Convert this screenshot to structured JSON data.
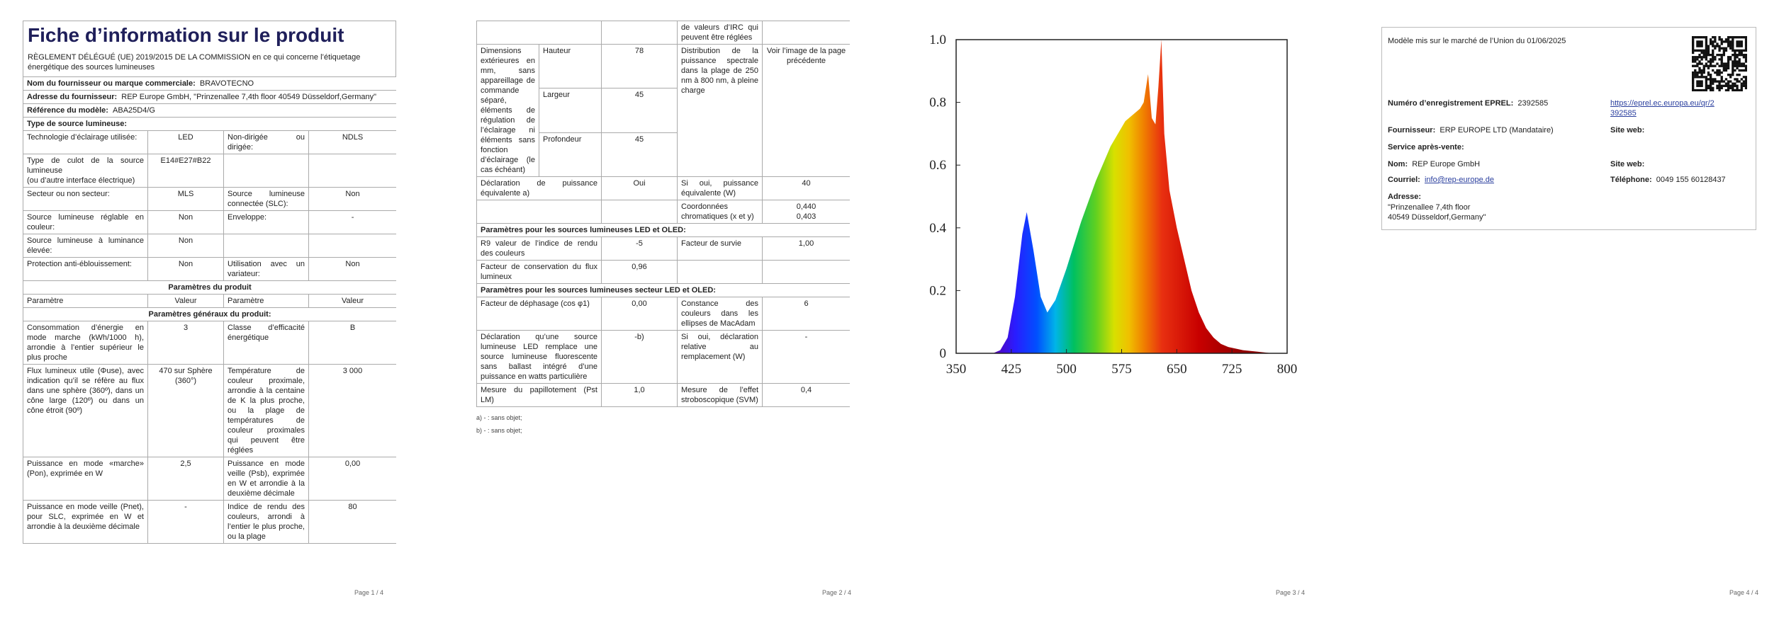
{
  "pages": [
    {
      "title": "Fiche d’information sur le produit",
      "regulation": "RÈGLEMENT DÉLÉGUÉ (UE) 2019/2015 DE LA COMMISSION en ce qui concerne l’étiquetage énergétique des sources lumineuses",
      "table": [
        {
          "field": "Nom du fournisseur ou marque commerciale:",
          "value": "BRAVOTECNO"
        },
        {
          "field": "Adresse du fournisseur:",
          "value": "REP Europe GmbH, \"Prinzenallee 7,4th floor 40549 Düsseldorf,Germany\""
        },
        {
          "field": "Référence du modèle:",
          "value": "ABA25D4/G"
        },
        {
          "section": "Type de source lumineuse:"
        },
        [
          "Technologie d’éclairage utilisée:",
          "LED",
          "Non-dirigée ou dirigée:",
          "NDLS"
        ],
        [
          "Type de culot de la source lumineuse\n(ou d’autre interface électrique)",
          "E14#E27#B22",
          null,
          null
        ],
        [
          "Secteur ou non secteur:",
          "MLS",
          "Source lumineuse connectée (SLC):",
          "Non"
        ],
        [
          "Source lumineuse réglable en couleur:",
          "Non",
          "Enveloppe:",
          "-"
        ],
        [
          "Source lumineuse à luminance élevée:",
          "Non",
          null,
          null
        ],
        [
          "Protection anti-éblouissement:",
          "Non",
          "Utilisation avec un variateur:",
          "Non"
        ],
        {
          "heading": "Paramètres du produit"
        },
        [
          "Paramètre",
          "Valeur",
          "Paramètre",
          "Valeur"
        ],
        {
          "heading": "Paramètres généraux du produit:"
        },
        [
          "Consommation d’énergie en mode marche (kWh/1000 h), arrondie à l’entier supérieur le plus proche",
          "3",
          "Classe d’efficacité énergétique",
          "B"
        ],
        [
          "Flux lumineux utile (Φuse), avec indication qu’il se réfère au flux dans une sphère (360º), dans un cône large (120º) ou dans un cône étroit (90º)",
          "470 sur Sphère (360°)",
          "Température de couleur proximale, arrondie à la centaine de K la plus proche, ou la plage de températures de couleur proximales qui peuvent être réglées",
          "3 000"
        ],
        [
          "Puissance en mode «marche» (Pon), exprimée en W",
          "2,5",
          "Puissance en mode veille (Psb), exprimée en W et arrondie à la deuxième décimale",
          "0,00"
        ],
        [
          "Puissance en mode veille (Pnet), pour SLC, exprimée en W et arrondie à la deuxième décimale",
          "-",
          "Indice de rendu des couleurs, arrondi à l’entier le plus proche, ou la plage",
          "80"
        ]
      ],
      "page_number": "Page 1 / 4"
    },
    {
      "table": [
        [
          null,
          null,
          "de valeurs d’IRC qui peuvent être réglées",
          null
        ],
        {
          "dimensions": {
            "label": "Dimensions extérieures en mm, sans appareillage de commande séparé, éléments de régulation de l’éclairage ni éléments sans fonction d’éclairage (le cas échéant)",
            "items": [
              {
                "name": "Hauteur",
                "value": "78"
              },
              {
                "name": "Largeur",
                "value": "45"
              },
              {
                "name": "Profondeur",
                "value": "45"
              }
            ],
            "label2": "Distribution de la puissance spectrale dans la plage de 250 nm à 800 nm, à pleine charge",
            "value2": "Voir l’image de la page précédente"
          }
        },
        [
          "Déclaration de puissance équivalente a)",
          "Oui",
          "Si oui, puissance équivalente (W)",
          "40"
        ],
        [
          null,
          null,
          "Coordonnées chromatiques (x et y)",
          "0,440\n0,403"
        ],
        {
          "section": "Paramètres pour les sources lumineuses LED et OLED:"
        },
        [
          "R9 valeur de l’indice de rendu des couleurs",
          "-5",
          "Facteur de survie",
          "1,00"
        ],
        [
          "Facteur de conservation du flux lumineux",
          "0,96",
          null,
          null
        ],
        {
          "section": "Paramètres pour les sources lumineuses secteur LED et OLED:"
        },
        [
          "Facteur de déphasage (cos φ1)",
          "0,00",
          "Constance des couleurs dans les ellipses de MacAdam",
          "6"
        ],
        [
          "Déclaration qu’une source lumineuse LED remplace une source lumineuse fluorescente sans ballast intégré d’une puissance en watts particulière",
          "-b)",
          "Si oui, déclaration relative au remplacement (W)",
          "-"
        ],
        [
          "Mesure du papillotement (Pst LM)",
          "1,0",
          "Mesure de l’effet stroboscopique (SVM)",
          "0,4"
        ]
      ],
      "footnotes": [
        "a) - : sans objet;",
        "b) - : sans objet;"
      ],
      "page_number": "Page 2 / 4"
    },
    {
      "page_number": "Page 3 / 4"
    },
    {
      "market": "Modèle mis sur le marché de l’Union du 01/06/2025",
      "eprel_label": "Numéro d’enregistrement EPREL:",
      "eprel_value": "2392585",
      "eprel_link": "https://eprel.ec.europa.eu/qr/2392585",
      "supplier_label": "Fournisseur:",
      "supplier_value": "ERP EUROPE LTD (Mandataire)",
      "website_label": "Site web:",
      "service_label": "Service après-vente:",
      "name_label": "Nom:",
      "name_value": "REP Europe GmbH",
      "website2_label": "Site web:",
      "email_label": "Courriel:",
      "email_value": "info@rep-europe.de",
      "phone_label": "Téléphone:",
      "phone_value": "0049 155 60128437",
      "address_label": "Adresse:",
      "address_value": "\"Prinzenallee 7,4th floor\n40549 Düsseldorf,Germany\"",
      "page_number": "Page 4 / 4"
    }
  ],
  "chart_data": {
    "type": "area",
    "x": [
      400,
      410,
      420,
      430,
      440,
      446,
      455,
      465,
      474,
      485,
      500,
      520,
      540,
      560,
      580,
      600,
      605,
      611,
      616,
      621,
      625,
      629,
      633,
      640,
      650,
      660,
      670,
      680,
      690,
      700,
      710,
      720,
      740,
      760,
      780
    ],
    "values": [
      0,
      0.01,
      0.05,
      0.18,
      0.38,
      0.45,
      0.33,
      0.18,
      0.13,
      0.17,
      0.27,
      0.42,
      0.55,
      0.66,
      0.74,
      0.78,
      0.8,
      0.89,
      0.75,
      0.73,
      0.85,
      1.0,
      0.7,
      0.52,
      0.4,
      0.3,
      0.2,
      0.13,
      0.08,
      0.05,
      0.03,
      0.02,
      0.01,
      0.005,
      0
    ],
    "xlim": [
      350,
      800
    ],
    "ylim": [
      0,
      1
    ],
    "xticks": [
      350,
      425,
      500,
      575,
      650,
      725,
      800
    ],
    "yticks": [
      0,
      0.2,
      0.4,
      0.6,
      0.8,
      {
        "value": 1,
        "label": "1.0"
      }
    ]
  }
}
